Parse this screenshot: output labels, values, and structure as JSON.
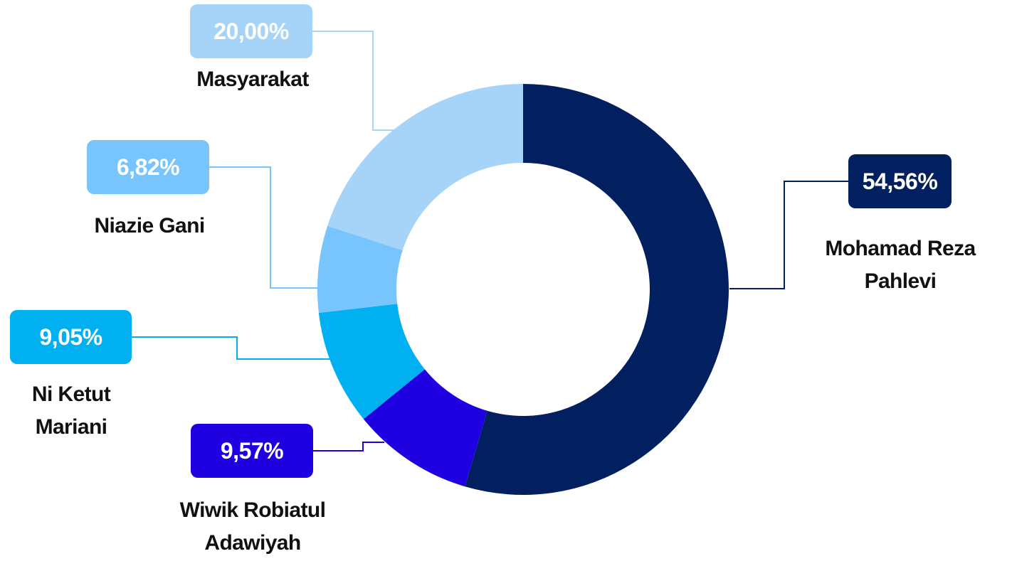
{
  "chart_data": {
    "type": "donut",
    "categories": [
      "Mohamad Reza Pahlevi",
      "Wiwik Robiatul Adawiyah",
      "Ni Ketut Mariani",
      "Niazie Gani",
      "Masyarakat"
    ],
    "values": [
      54.56,
      9.57,
      9.05,
      6.82,
      20.0
    ],
    "value_labels": [
      "54,56%",
      "9,57%",
      "9,05%",
      "6,82%",
      "20,00%"
    ],
    "colors": [
      "#022060",
      "#1e00e0",
      "#00b0f0",
      "#78c4fc",
      "#a6d4f8"
    ]
  }
}
